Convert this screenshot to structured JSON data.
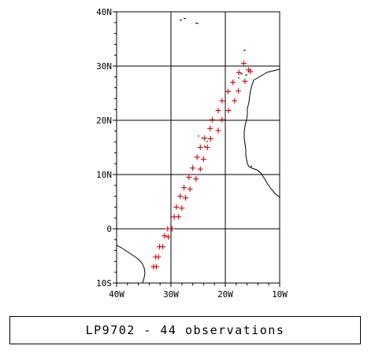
{
  "caption": "LP9702 - 44 observations",
  "map": {
    "lon_range": [
      -40,
      -10
    ],
    "lat_range": [
      -10,
      40
    ],
    "lon_ticks": [
      {
        "value": -40,
        "label": "40W"
      },
      {
        "value": -30,
        "label": "30W"
      },
      {
        "value": -20,
        "label": "20W"
      },
      {
        "value": -10,
        "label": "10W"
      }
    ],
    "lat_ticks": [
      {
        "value": 40,
        "label": "40N"
      },
      {
        "value": 30,
        "label": "30N"
      },
      {
        "value": 20,
        "label": "20N"
      },
      {
        "value": 10,
        "label": "10N"
      },
      {
        "value": 0,
        "label": "0"
      },
      {
        "value": -10,
        "label": "10S"
      }
    ],
    "grid": true,
    "marker_color": "#dd0000",
    "observations": [
      [
        -32.7,
        -7.0
      ],
      [
        -33.2,
        -7.0
      ],
      [
        -32.8,
        -5.2
      ],
      [
        -32.3,
        -5.2
      ],
      [
        -32.1,
        -3.3
      ],
      [
        -31.5,
        -3.3
      ],
      [
        -31.2,
        -1.3
      ],
      [
        -30.5,
        -1.5
      ],
      [
        -30.6,
        0.0
      ],
      [
        -29.8,
        0.0
      ],
      [
        -29.4,
        2.2
      ],
      [
        -28.6,
        2.2
      ],
      [
        -29.0,
        4.0
      ],
      [
        -28.0,
        3.8
      ],
      [
        -28.3,
        6.0
      ],
      [
        -27.3,
        5.7
      ],
      [
        -27.6,
        7.6
      ],
      [
        -26.5,
        7.3
      ],
      [
        -26.7,
        9.5
      ],
      [
        -25.4,
        9.2
      ],
      [
        -26.0,
        11.2
      ],
      [
        -24.6,
        11.0
      ],
      [
        -25.2,
        13.2
      ],
      [
        -24.0,
        12.8
      ],
      [
        -24.6,
        15.0
      ],
      [
        -23.3,
        15.0
      ],
      [
        -23.8,
        16.7
      ],
      [
        -22.7,
        16.6
      ],
      [
        -22.8,
        18.5
      ],
      [
        -21.3,
        18.1
      ],
      [
        -22.4,
        20.1
      ],
      [
        -20.6,
        20.1
      ],
      [
        -21.3,
        21.8
      ],
      [
        -19.4,
        21.8
      ],
      [
        -20.6,
        23.6
      ],
      [
        -18.3,
        23.6
      ],
      [
        -19.5,
        25.3
      ],
      [
        -17.6,
        25.4
      ],
      [
        -18.6,
        27.0
      ],
      [
        -16.4,
        27.2
      ],
      [
        -17.5,
        28.8
      ],
      [
        -15.4,
        29.0
      ],
      [
        -16.6,
        30.5
      ],
      [
        -15.7,
        29.3
      ]
    ]
  }
}
